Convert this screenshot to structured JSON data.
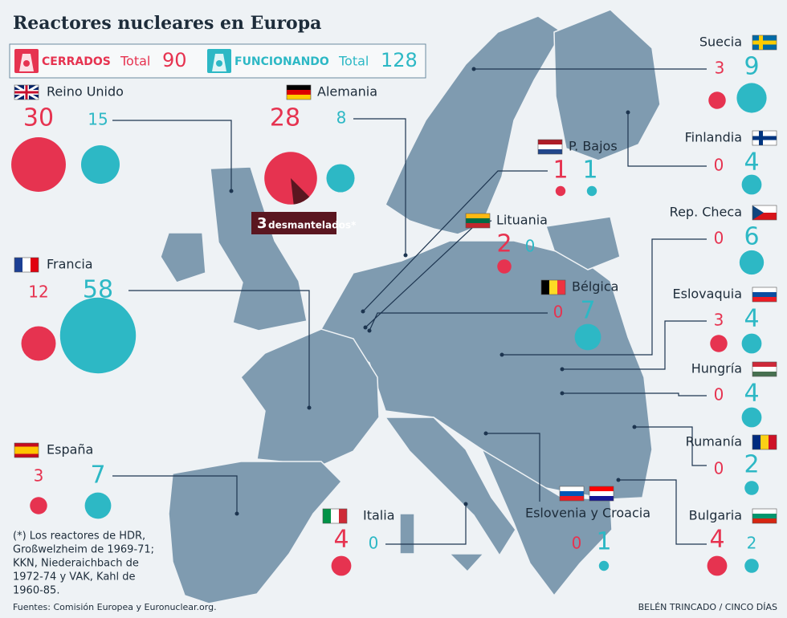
{
  "title": "Reactores nucleares en Europa",
  "legend": {
    "closed": {
      "label": "CERRADOS",
      "total_label": "Total",
      "total": 90,
      "color": "#e63350"
    },
    "open": {
      "label": "FUNCIONANDO",
      "total_label": "Total",
      "total": 128,
      "color": "#2db8c5"
    }
  },
  "countries": [
    {
      "name": "Reino Unido",
      "closed": 30,
      "open": 15
    },
    {
      "name": "Alemania",
      "closed": 28,
      "open": 8,
      "dismantled": 3,
      "dismantled_label": "desmantelados*"
    },
    {
      "name": "Francia",
      "closed": 12,
      "open": 58
    },
    {
      "name": "España",
      "closed": 3,
      "open": 7
    },
    {
      "name": "Italia",
      "closed": 4,
      "open": 0
    },
    {
      "name": "P. Bajos",
      "closed": 1,
      "open": 1
    },
    {
      "name": "Lituania",
      "closed": 2,
      "open": 0
    },
    {
      "name": "Bélgica",
      "closed": 0,
      "open": 7
    },
    {
      "name": "Eslovenia y Croacia",
      "closed": 0,
      "open": 1
    },
    {
      "name": "Suecia",
      "closed": 3,
      "open": 9
    },
    {
      "name": "Finlandia",
      "closed": 0,
      "open": 4
    },
    {
      "name": "Rep. Checa",
      "closed": 0,
      "open": 6
    },
    {
      "name": "Eslovaquia",
      "closed": 3,
      "open": 4
    },
    {
      "name": "Hungría",
      "closed": 0,
      "open": 4
    },
    {
      "name": "Rumanía",
      "closed": 0,
      "open": 2
    },
    {
      "name": "Bulgaria",
      "closed": 4,
      "open": 2
    }
  ],
  "footnote": [
    "(*) Los reactores de HDR,",
    "Großwelzheim de 1969-71;",
    "KKN, Niederaichbach de",
    "1972-74 y VAK, Kahl de",
    "1960-85."
  ],
  "sources": "Fuentes: Comisión Europea  y Euronuclear.org.",
  "credit": "BELÉN TRINCADO / CINCO DÍAS"
}
